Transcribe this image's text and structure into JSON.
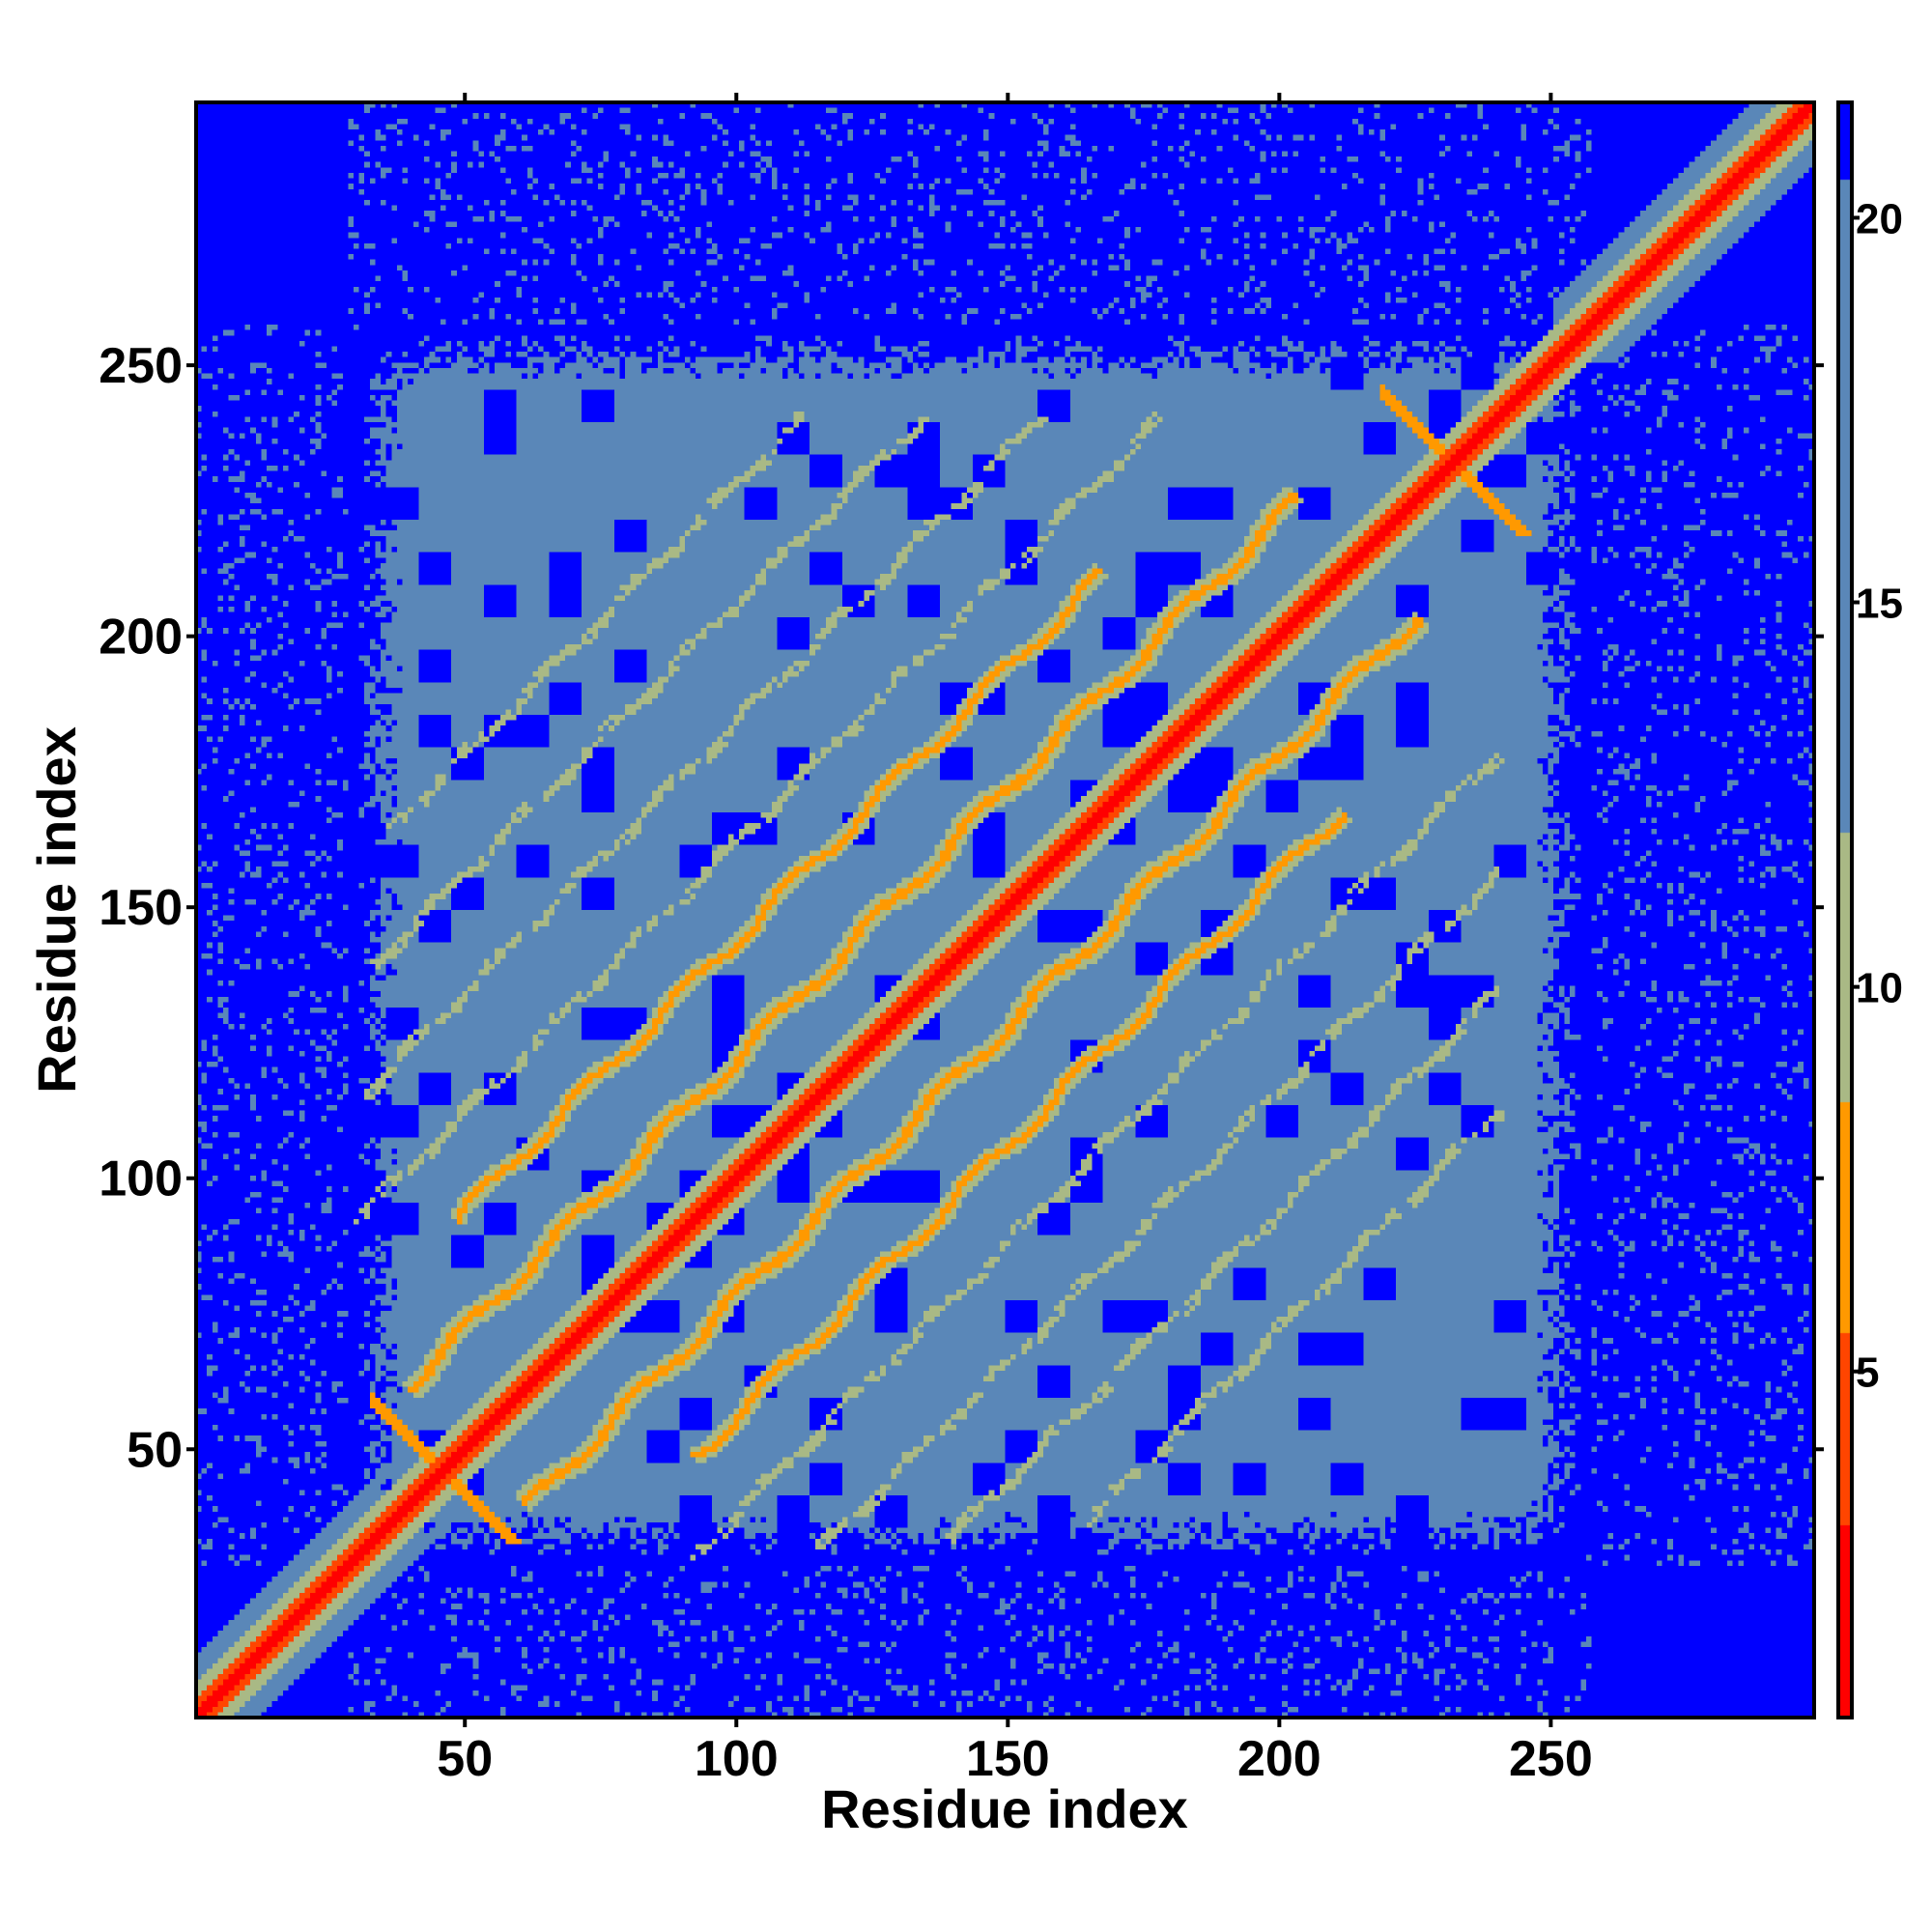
{
  "chart_data": {
    "type": "heatmap",
    "title": "",
    "xlabel": "Residue index",
    "ylabel": "Residue index",
    "xlim": [
      1,
      298
    ],
    "ylim": [
      1,
      298
    ],
    "x_ticks": [
      50,
      100,
      150,
      200,
      250
    ],
    "y_ticks": [
      50,
      100,
      150,
      200,
      250
    ],
    "x_tick_labels": [
      "50",
      "100",
      "150",
      "200",
      "250"
    ],
    "y_tick_labels": [
      "50",
      "100",
      "150",
      "200",
      "250"
    ],
    "value_range": [
      0,
      21
    ],
    "colorbar": {
      "ticks": [
        5,
        10,
        15,
        20
      ],
      "tick_labels": [
        "5",
        "10",
        "15",
        "20"
      ],
      "range": [
        0.5,
        21.5
      ],
      "colors": [
        {
          "from": 0.5,
          "to": 3,
          "color": "#ff0000"
        },
        {
          "from": 3,
          "to": 5.5,
          "color": "#ff4500"
        },
        {
          "from": 5.5,
          "to": 8.5,
          "color": "#ff9900"
        },
        {
          "from": 8.5,
          "to": 12,
          "color": "#a9b985"
        },
        {
          "from": 12,
          "to": 20.5,
          "color": "#5a87b8"
        },
        {
          "from": 20.5,
          "to": 21.5,
          "color": "#0000ff"
        }
      ]
    },
    "grid": false,
    "legend": "colorbar-right",
    "features": {
      "diagonal": "distance ~0-4 along i=j",
      "antiparallel_strands": "orange bands at |i-j| ~ 20-25 between residues 45-240",
      "compact_core": "residues ~35-250 mostly 12-20",
      "far_regions": ">20 (blue) outside core"
    }
  }
}
